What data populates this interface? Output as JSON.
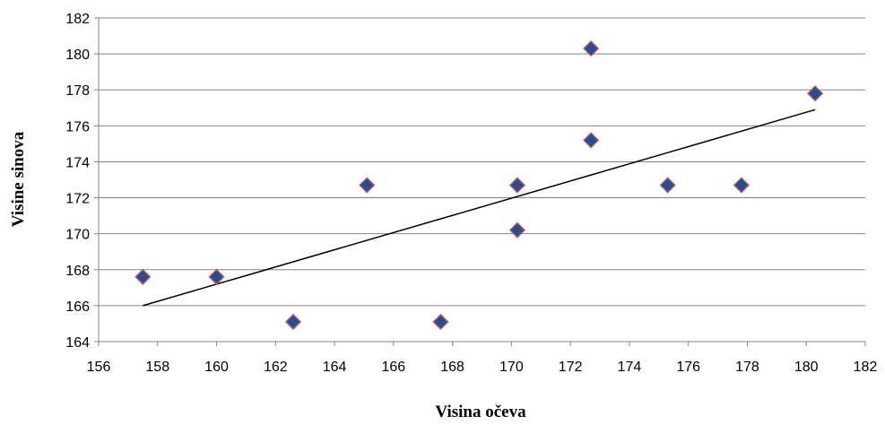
{
  "chart_data": {
    "type": "scatter",
    "title": "",
    "xlabel": "Visina očeva",
    "ylabel": "Visine sinova",
    "xlim": [
      156,
      182
    ],
    "ylim": [
      164,
      182
    ],
    "x_ticks": [
      "156",
      "158",
      "160",
      "162",
      "164",
      "166",
      "168",
      "170",
      "172",
      "174",
      "176",
      "178",
      "180",
      "182"
    ],
    "y_ticks": [
      "164",
      "166",
      "168",
      "170",
      "172",
      "174",
      "176",
      "178",
      "180",
      "182"
    ],
    "grid": "horizontal",
    "legend": "none",
    "series": [
      {
        "points": [
          {
            "x": 157.5,
            "y": 167.6
          },
          {
            "x": 160.0,
            "y": 167.6
          },
          {
            "x": 162.6,
            "y": 165.1
          },
          {
            "x": 165.1,
            "y": 172.7
          },
          {
            "x": 167.6,
            "y": 165.1
          },
          {
            "x": 170.2,
            "y": 172.7
          },
          {
            "x": 170.2,
            "y": 170.2
          },
          {
            "x": 172.7,
            "y": 180.3
          },
          {
            "x": 172.7,
            "y": 175.2
          },
          {
            "x": 175.3,
            "y": 172.7
          },
          {
            "x": 177.8,
            "y": 172.7
          },
          {
            "x": 180.3,
            "y": 177.8
          }
        ],
        "marker": "diamond",
        "marker_fill": "#1F4E9A",
        "marker_edge": "#C0504D"
      }
    ],
    "trendline": {
      "type": "linear",
      "start": {
        "x": 157.5,
        "y": 166.0
      },
      "end": {
        "x": 180.3,
        "y": 176.9
      },
      "color": "#000000"
    }
  }
}
